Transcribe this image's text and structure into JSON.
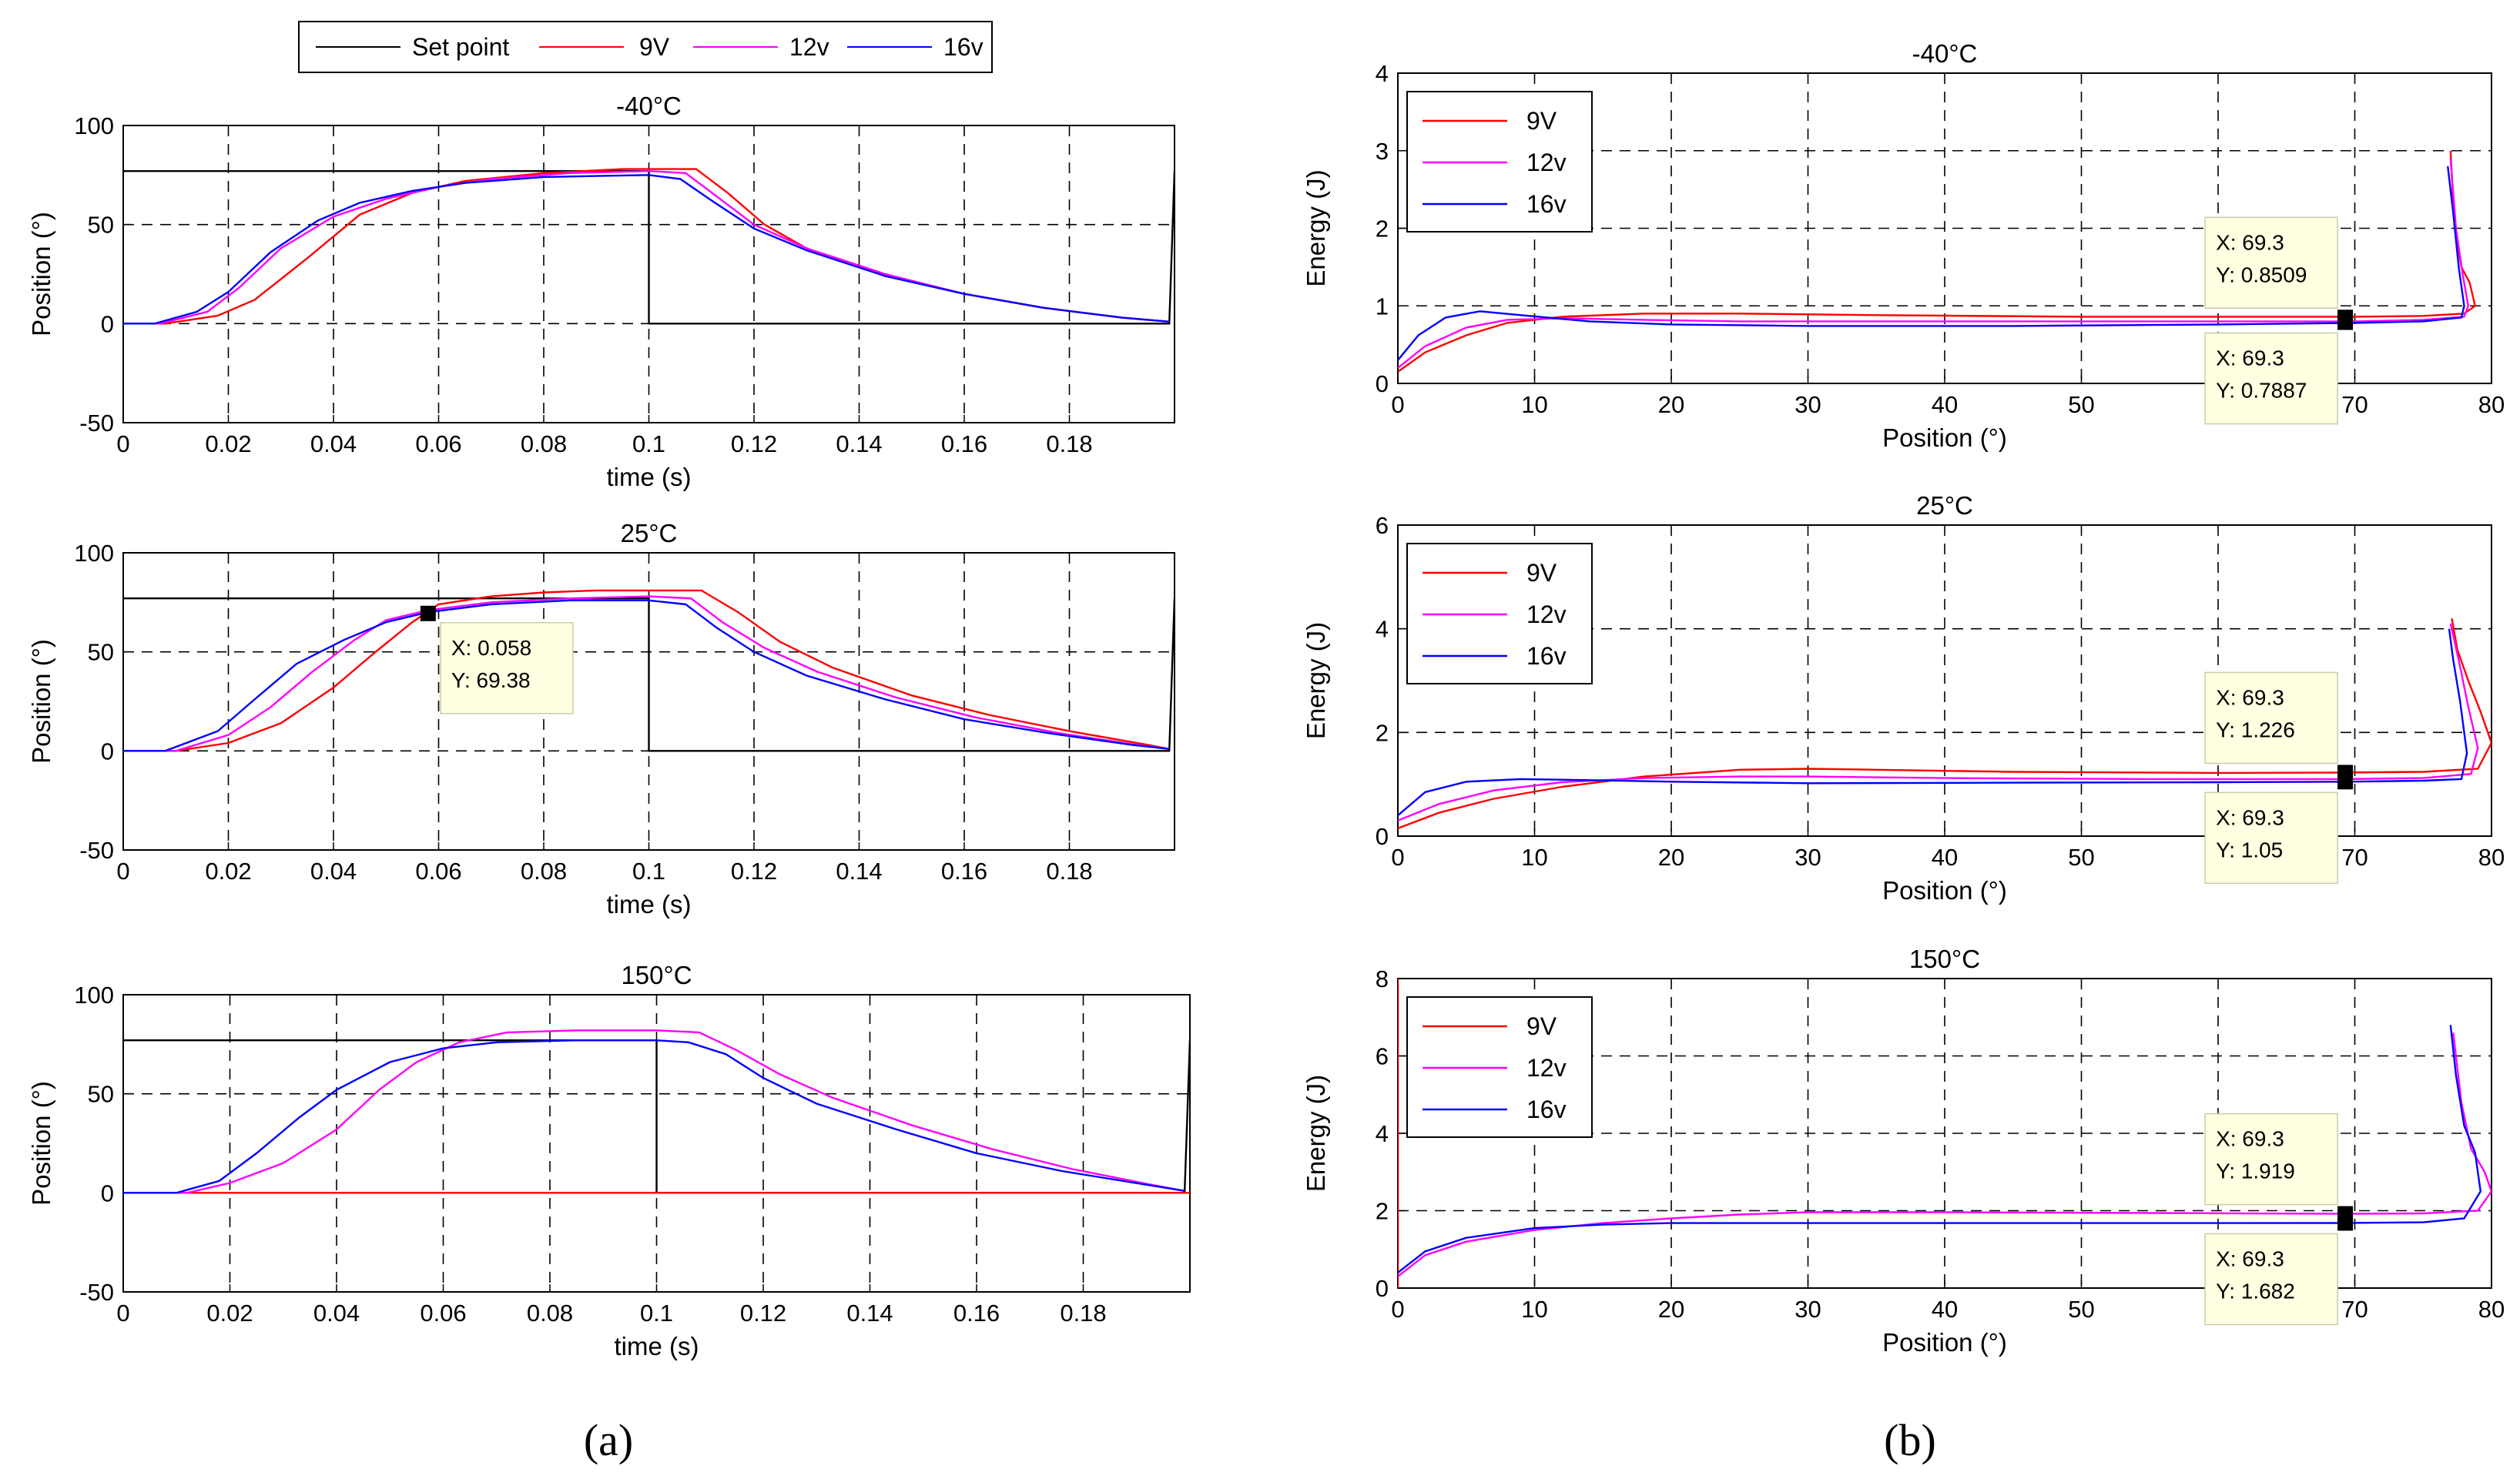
{
  "figure": {
    "panel_labels": [
      "(a)",
      "(b)"
    ],
    "top_legend": [
      "Set point",
      "9V",
      "12v",
      "16v"
    ]
  },
  "chart_data": [
    {
      "type": "line",
      "panel": "a",
      "title": "-40°C",
      "xlabel": "time (s)",
      "ylabel": "Position (°)",
      "xlim": [
        0,
        0.2
      ],
      "ylim": [
        -50,
        100
      ],
      "xticks": [
        0,
        0.02,
        0.04,
        0.06,
        0.08,
        0.1,
        0.12,
        0.14,
        0.16,
        0.18
      ],
      "xticklabels": [
        "0",
        "0.02",
        "0.04",
        "0.06",
        "0.08",
        "0.1",
        "0.12",
        "0.14",
        "0.16",
        "0.18"
      ],
      "yticks": [
        -50,
        0,
        50,
        100
      ],
      "yticklabels": [
        "-50",
        "0",
        "50",
        "100"
      ],
      "grid": true,
      "series": [
        {
          "name": "Set point",
          "color": "#000000",
          "x": [
            0,
            0.1,
            0.1,
            0.199,
            0.2
          ],
          "y": [
            77,
            77,
            0,
            0,
            77
          ]
        },
        {
          "name": "9V",
          "color": "#ff0000",
          "x": [
            0,
            0.008,
            0.018,
            0.025,
            0.035,
            0.045,
            0.055,
            0.065,
            0.08,
            0.095,
            0.109,
            0.115,
            0.122,
            0.13,
            0.145,
            0.16,
            0.175,
            0.19,
            0.199
          ],
          "y": [
            0,
            0,
            4,
            12,
            33,
            55,
            66,
            72,
            76,
            78,
            78,
            66,
            50,
            38,
            24,
            15,
            8,
            3,
            1
          ]
        },
        {
          "name": "12v",
          "color": "#ff00ff",
          "x": [
            0,
            0.007,
            0.016,
            0.022,
            0.03,
            0.04,
            0.05,
            0.06,
            0.07,
            0.085,
            0.1,
            0.107,
            0.113,
            0.12,
            0.13,
            0.145,
            0.16,
            0.175,
            0.19,
            0.199
          ],
          "y": [
            0,
            0,
            6,
            18,
            38,
            54,
            63,
            69,
            73,
            76,
            77,
            76,
            64,
            50,
            38,
            25,
            15,
            8,
            3,
            1
          ]
        },
        {
          "name": "16v",
          "color": "#0000ff",
          "x": [
            0,
            0.006,
            0.014,
            0.02,
            0.028,
            0.037,
            0.045,
            0.055,
            0.065,
            0.08,
            0.1,
            0.106,
            0.112,
            0.12,
            0.13,
            0.145,
            0.16,
            0.175,
            0.19,
            0.199
          ],
          "y": [
            0,
            0,
            6,
            16,
            36,
            52,
            61,
            67,
            71,
            74,
            75,
            73,
            62,
            48,
            37,
            24,
            15,
            8,
            3,
            1
          ]
        }
      ],
      "annotations": []
    },
    {
      "type": "line",
      "panel": "a",
      "title": "25°C",
      "xlabel": "time (s)",
      "ylabel": "Position (°)",
      "xlim": [
        0,
        0.2
      ],
      "ylim": [
        -50,
        100
      ],
      "xticks": [
        0,
        0.02,
        0.04,
        0.06,
        0.08,
        0.1,
        0.12,
        0.14,
        0.16,
        0.18
      ],
      "xticklabels": [
        "0",
        "0.02",
        "0.04",
        "0.06",
        "0.08",
        "0.1",
        "0.12",
        "0.14",
        "0.16",
        "0.18"
      ],
      "yticks": [
        -50,
        0,
        50,
        100
      ],
      "yticklabels": [
        "-50",
        "0",
        "50",
        "100"
      ],
      "grid": true,
      "series": [
        {
          "name": "Set point",
          "color": "#000000",
          "x": [
            0,
            0.1,
            0.1,
            0.199,
            0.2
          ],
          "y": [
            77,
            77,
            0,
            0,
            77
          ]
        },
        {
          "name": "9V",
          "color": "#ff0000",
          "x": [
            0,
            0.01,
            0.02,
            0.03,
            0.04,
            0.048,
            0.055,
            0.06,
            0.07,
            0.08,
            0.09,
            0.11,
            0.117,
            0.125,
            0.135,
            0.15,
            0.165,
            0.18,
            0.195,
            0.199
          ],
          "y": [
            0,
            0,
            4,
            14,
            32,
            50,
            65,
            74,
            78,
            80,
            81,
            81,
            70,
            55,
            42,
            28,
            18,
            10,
            3,
            1
          ]
        },
        {
          "name": "12v",
          "color": "#ff00ff",
          "x": [
            0,
            0.01,
            0.02,
            0.028,
            0.036,
            0.044,
            0.05,
            0.058,
            0.07,
            0.085,
            0.1,
            0.108,
            0.114,
            0.122,
            0.132,
            0.147,
            0.162,
            0.178,
            0.193,
            0.199
          ],
          "y": [
            0,
            0,
            8,
            22,
            40,
            56,
            66,
            71,
            75,
            77,
            78,
            77,
            65,
            52,
            40,
            27,
            17,
            9,
            3,
            1
          ]
        },
        {
          "name": "16v",
          "color": "#0000ff",
          "x": [
            0,
            0.008,
            0.018,
            0.025,
            0.033,
            0.042,
            0.05,
            0.058,
            0.07,
            0.085,
            0.1,
            0.107,
            0.113,
            0.12,
            0.13,
            0.145,
            0.16,
            0.176,
            0.192,
            0.199
          ],
          "y": [
            0,
            0,
            10,
            26,
            44,
            56,
            65,
            70,
            74,
            76,
            76,
            74,
            62,
            50,
            38,
            26,
            16,
            9,
            3,
            1
          ]
        }
      ],
      "annotations": [
        {
          "x": 0.058,
          "y": 69.38,
          "lines": [
            "X: 0.058",
            "Y: 69.38"
          ]
        }
      ]
    },
    {
      "type": "line",
      "panel": "a",
      "title": "150°C",
      "xlabel": "time (s)",
      "ylabel": "Position (°)",
      "xlim": [
        0,
        0.2
      ],
      "ylim": [
        -50,
        100
      ],
      "xticks": [
        0,
        0.02,
        0.04,
        0.06,
        0.08,
        0.1,
        0.12,
        0.14,
        0.16,
        0.18
      ],
      "xticklabels": [
        "0",
        "0.02",
        "0.04",
        "0.06",
        "0.08",
        "0.1",
        "0.12",
        "0.14",
        "0.16",
        "0.18"
      ],
      "yticks": [
        -50,
        0,
        50,
        100
      ],
      "yticklabels": [
        "-50",
        "0",
        "50",
        "100"
      ],
      "grid": true,
      "series": [
        {
          "name": "Set point",
          "color": "#000000",
          "x": [
            0,
            0.1,
            0.1,
            0.199,
            0.2
          ],
          "y": [
            77,
            77,
            0,
            0,
            77
          ]
        },
        {
          "name": "9V",
          "color": "#ff0000",
          "x": [
            0,
            0.2
          ],
          "y": [
            0,
            0
          ]
        },
        {
          "name": "12v",
          "color": "#ff00ff",
          "x": [
            0,
            0.012,
            0.02,
            0.03,
            0.04,
            0.048,
            0.055,
            0.063,
            0.072,
            0.085,
            0.1,
            0.108,
            0.115,
            0.123,
            0.133,
            0.148,
            0.163,
            0.178,
            0.193,
            0.199
          ],
          "y": [
            0,
            0,
            5,
            15,
            32,
            52,
            66,
            76,
            81,
            82,
            82,
            81,
            72,
            60,
            48,
            34,
            22,
            12,
            4,
            1
          ]
        },
        {
          "name": "16v",
          "color": "#0000ff",
          "x": [
            0,
            0.01,
            0.018,
            0.025,
            0.033,
            0.04,
            0.05,
            0.06,
            0.07,
            0.085,
            0.1,
            0.106,
            0.113,
            0.12,
            0.13,
            0.145,
            0.16,
            0.176,
            0.192,
            0.199
          ],
          "y": [
            0,
            0,
            6,
            20,
            38,
            52,
            66,
            73,
            76,
            77,
            77,
            76,
            70,
            58,
            45,
            32,
            20,
            11,
            4,
            1
          ]
        }
      ],
      "annotations": []
    },
    {
      "type": "line",
      "panel": "b",
      "title": "-40°C",
      "xlabel": "Position (°)",
      "ylabel": "Energy (J)",
      "xlim": [
        0,
        80
      ],
      "ylim": [
        0,
        4
      ],
      "xticks": [
        0,
        10,
        20,
        30,
        40,
        50,
        60,
        70,
        80
      ],
      "xticklabels": [
        "0",
        "10",
        "20",
        "30",
        "40",
        "50",
        "60",
        "70",
        "80"
      ],
      "yticks": [
        0,
        1,
        2,
        3,
        4
      ],
      "yticklabels": [
        "0",
        "1",
        "2",
        "3",
        "4"
      ],
      "grid": true,
      "legend": [
        "9V",
        "12v",
        "16v"
      ],
      "series": [
        {
          "name": "9V",
          "color": "#ff0000",
          "x": [
            0,
            2,
            5,
            8,
            12,
            18,
            25,
            35,
            50,
            65,
            70,
            75,
            78,
            78.8,
            78.4,
            77.8,
            77.3,
            77
          ],
          "y": [
            0.15,
            0.4,
            0.62,
            0.78,
            0.86,
            0.9,
            0.9,
            0.88,
            0.86,
            0.86,
            0.86,
            0.87,
            0.9,
            1.0,
            1.3,
            1.5,
            2.0,
            3.0
          ]
        },
        {
          "name": "12v",
          "color": "#ff00ff",
          "x": [
            0,
            2,
            5,
            8,
            12,
            18,
            25,
            35,
            50,
            65,
            70,
            75,
            78,
            78.3,
            77.9,
            77.4,
            77
          ],
          "y": [
            0.2,
            0.48,
            0.72,
            0.82,
            0.84,
            0.82,
            0.8,
            0.8,
            0.8,
            0.8,
            0.8,
            0.82,
            0.86,
            1.0,
            1.4,
            2.0,
            2.9
          ]
        },
        {
          "name": "16v",
          "color": "#0000ff",
          "x": [
            0,
            1.5,
            3.5,
            6,
            9,
            14,
            20,
            30,
            45,
            60,
            70,
            75,
            77.8,
            78,
            77.6,
            77.2,
            76.8
          ],
          "y": [
            0.3,
            0.62,
            0.85,
            0.93,
            0.88,
            0.8,
            0.76,
            0.74,
            0.74,
            0.76,
            0.78,
            0.8,
            0.85,
            1.0,
            1.5,
            2.2,
            2.8
          ]
        }
      ],
      "annotations": [
        {
          "x": 69.3,
          "y": 0.8509,
          "lines": [
            "X: 69.3",
            "Y: 0.8509"
          ]
        },
        {
          "x": 69.3,
          "y": 0.7887,
          "lines": [
            "X: 69.3",
            "Y: 0.7887"
          ]
        }
      ]
    },
    {
      "type": "line",
      "panel": "b",
      "title": "25°C",
      "xlabel": "Position (°)",
      "ylabel": "Energy (J)",
      "xlim": [
        0,
        80
      ],
      "ylim": [
        0,
        6
      ],
      "xticks": [
        0,
        10,
        20,
        30,
        40,
        50,
        60,
        70,
        80
      ],
      "xticklabels": [
        "0",
        "10",
        "20",
        "30",
        "40",
        "50",
        "60",
        "70",
        "80"
      ],
      "yticks": [
        0,
        2,
        4,
        6
      ],
      "yticklabels": [
        "0",
        "2",
        "4",
        "6"
      ],
      "grid": true,
      "legend": [
        "9V",
        "12v",
        "16v"
      ],
      "series": [
        {
          "name": "9V",
          "color": "#ff0000",
          "x": [
            0,
            3,
            7,
            12,
            18,
            25,
            30,
            35,
            45,
            60,
            69.3,
            75,
            79,
            80,
            79.2,
            78.3,
            77.5,
            77.1
          ],
          "y": [
            0.15,
            0.45,
            0.72,
            0.95,
            1.15,
            1.28,
            1.3,
            1.28,
            1.24,
            1.22,
            1.226,
            1.24,
            1.3,
            1.8,
            2.4,
            3.0,
            3.6,
            4.2
          ]
        },
        {
          "name": "12v",
          "color": "#ff00ff",
          "x": [
            0,
            3,
            7,
            12,
            18,
            25,
            30,
            40,
            55,
            69.3,
            75,
            78.5,
            79,
            78.3,
            77.6,
            77
          ],
          "y": [
            0.3,
            0.62,
            0.88,
            1.04,
            1.12,
            1.15,
            1.15,
            1.12,
            1.1,
            1.1,
            1.12,
            1.2,
            1.7,
            2.5,
            3.4,
            4.1
          ]
        },
        {
          "name": "16v",
          "color": "#0000ff",
          "x": [
            0,
            2,
            5,
            9,
            14,
            20,
            30,
            45,
            60,
            69.3,
            75,
            77.8,
            78.2,
            77.7,
            77.2,
            76.9
          ],
          "y": [
            0.4,
            0.85,
            1.05,
            1.1,
            1.08,
            1.05,
            1.02,
            1.03,
            1.04,
            1.05,
            1.07,
            1.1,
            1.6,
            2.6,
            3.4,
            4.0
          ]
        }
      ],
      "annotations": [
        {
          "x": 69.3,
          "y": 1.226,
          "lines": [
            "X: 69.3",
            "Y: 1.226"
          ]
        },
        {
          "x": 69.3,
          "y": 1.05,
          "lines": [
            "X: 69.3",
            "Y: 1.05"
          ]
        }
      ]
    },
    {
      "type": "line",
      "panel": "b",
      "title": "150°C",
      "xlabel": "Position (°)",
      "ylabel": "Energy (J)",
      "xlim": [
        0,
        80
      ],
      "ylim": [
        0,
        8
      ],
      "xticks": [
        0,
        10,
        20,
        30,
        40,
        50,
        60,
        70,
        80
      ],
      "xticklabels": [
        "0",
        "10",
        "20",
        "30",
        "40",
        "50",
        "60",
        "70",
        "80"
      ],
      "yticks": [
        0,
        2,
        4,
        6,
        8
      ],
      "yticklabels": [
        "0",
        "2",
        "4",
        "6",
        "8"
      ],
      "grid": true,
      "legend": [
        "9V",
        "12v",
        "16v"
      ],
      "series": [
        {
          "name": "9V",
          "color": "#ff0000",
          "x": [
            0,
            0
          ],
          "y": [
            0,
            8
          ]
        },
        {
          "name": "12v",
          "color": "#ff00ff",
          "x": [
            0,
            2,
            5,
            10,
            15,
            20,
            25,
            30,
            40,
            55,
            69.3,
            75,
            79,
            80,
            79.5,
            78.5,
            77.8,
            77.2
          ],
          "y": [
            0.3,
            0.85,
            1.2,
            1.5,
            1.68,
            1.8,
            1.9,
            1.96,
            1.96,
            1.94,
            1.919,
            1.93,
            2.0,
            2.5,
            3.0,
            3.6,
            4.8,
            6.6
          ]
        },
        {
          "name": "16v",
          "color": "#0000ff",
          "x": [
            0,
            2,
            5,
            10,
            15,
            20,
            30,
            45,
            60,
            69.3,
            75,
            78,
            79.2,
            78.8,
            78,
            77.4,
            77
          ],
          "y": [
            0.4,
            0.95,
            1.3,
            1.55,
            1.64,
            1.68,
            1.68,
            1.68,
            1.68,
            1.682,
            1.7,
            1.8,
            2.5,
            3.5,
            4.2,
            5.5,
            6.8
          ]
        }
      ],
      "annotations": [
        {
          "x": 69.3,
          "y": 1.919,
          "lines": [
            "X: 69.3",
            "Y: 1.919"
          ]
        },
        {
          "x": 69.3,
          "y": 1.682,
          "lines": [
            "X: 69.3",
            "Y: 1.682"
          ]
        }
      ]
    }
  ]
}
